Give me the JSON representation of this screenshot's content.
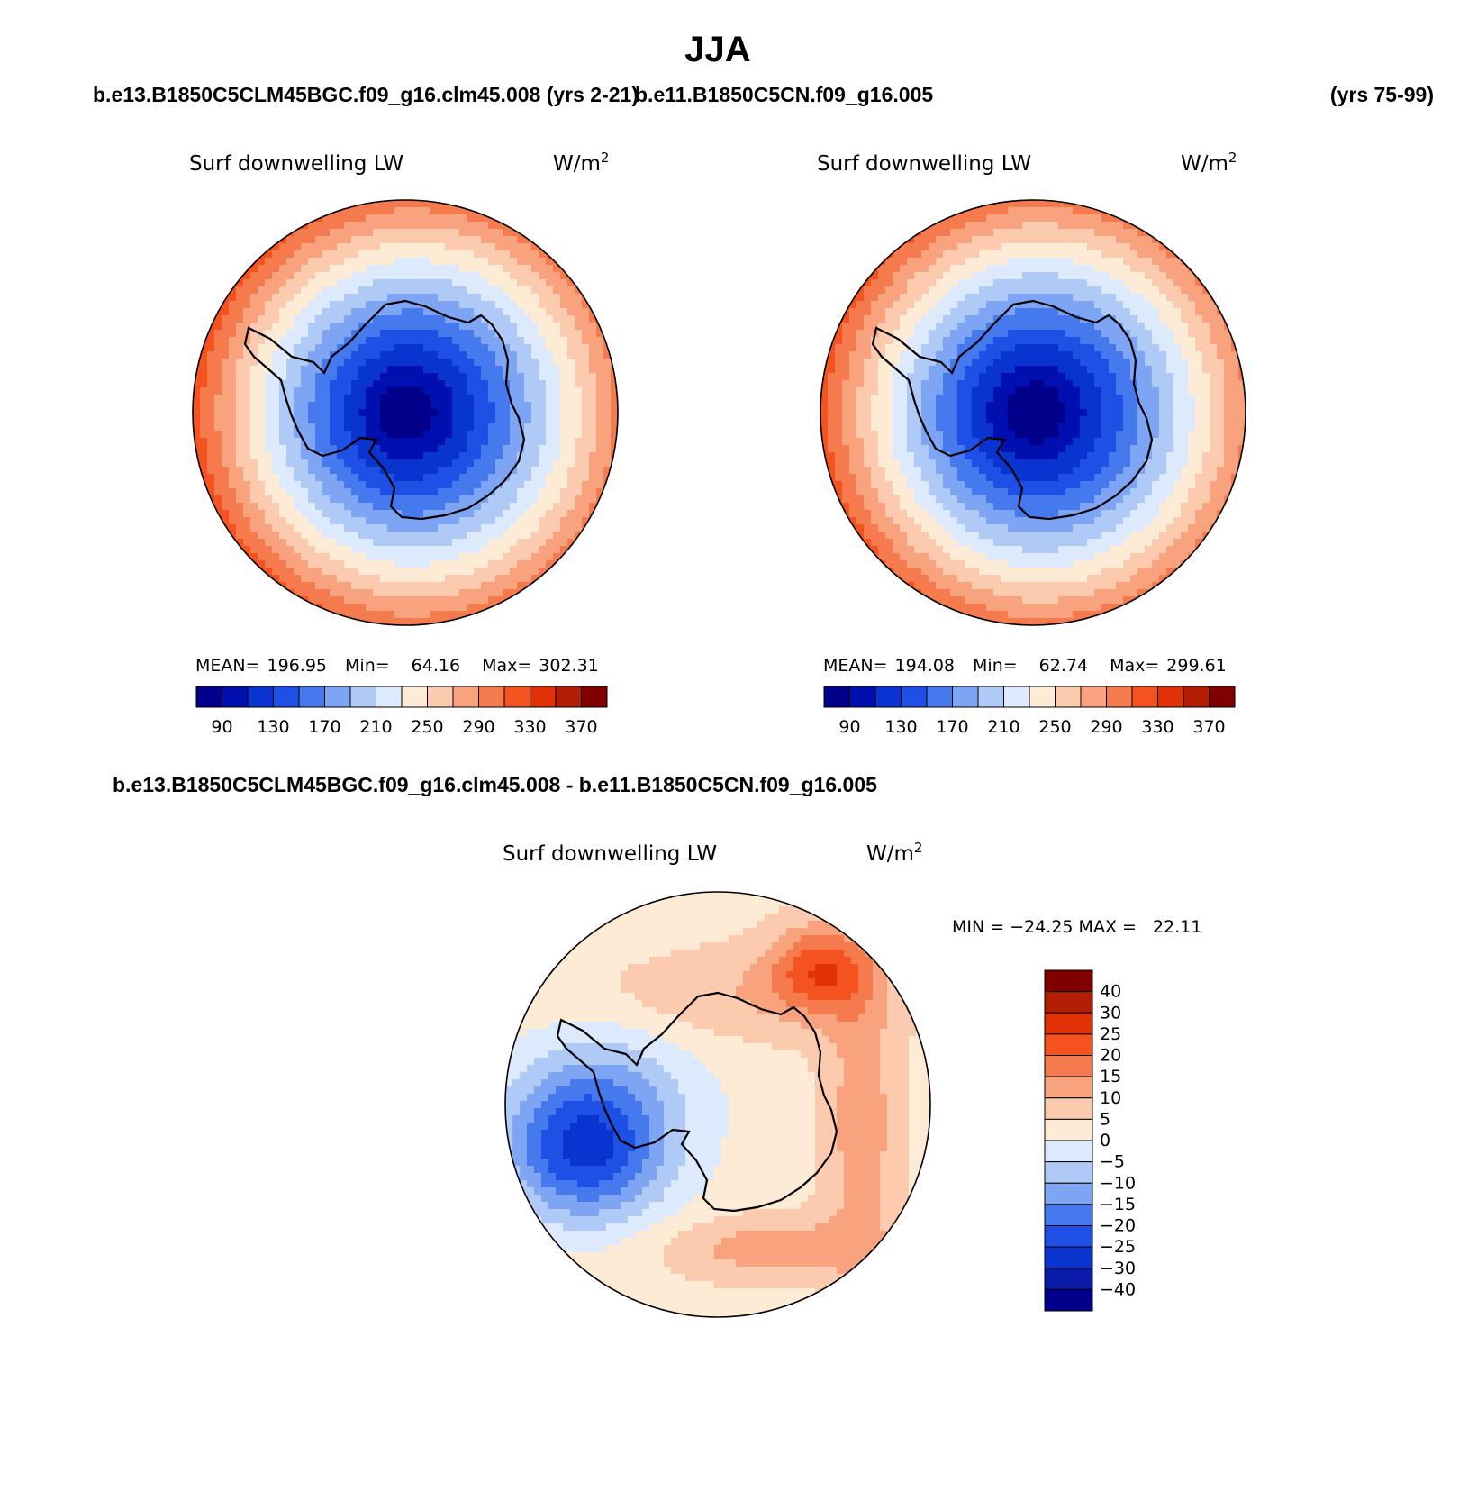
{
  "figure": {
    "title": "JJA",
    "case1": "b.e13.B1850C5CLM45BGC.f09_g16.clm45.008 (yrs 2-21)",
    "case2": "b.e11.B1850C5CN.f09_g16.005",
    "case2_years": "(yrs 75-99)",
    "diff_title": "b.e13.B1850C5CLM45BGC.f09_g16.clm45.008 - b.e11.B1850C5CN.f09_g16.005"
  },
  "colors": {
    "main_scale": [
      "#00008b",
      "#0010b0",
      "#0a34d0",
      "#1e50e6",
      "#4678ee",
      "#7ea4f4",
      "#b0caf8",
      "#dde9fc",
      "#fdebd6",
      "#fccaae",
      "#f9a27e",
      "#f57a4e",
      "#f4521e",
      "#e03206",
      "#b41e04",
      "#800000"
    ],
    "diff_scale": [
      "#00008b",
      "#0a1aa8",
      "#0a34d0",
      "#1e50e6",
      "#4678ee",
      "#7ea4f4",
      "#b0caf8",
      "#dde9fc",
      "#fdebd6",
      "#fccaae",
      "#f9a27e",
      "#f57a4e",
      "#f4521e",
      "#e03206",
      "#b41e04",
      "#800000"
    ],
    "coast": "#000000"
  },
  "chart_data": [
    {
      "type": "heatmap",
      "projection": "south-polar",
      "variable": "Surf downwelling LW",
      "units": "W/m",
      "units_exp": "2",
      "stats": {
        "mean_label": "MEAN=",
        "mean": "196.95",
        "min_label": "Min=",
        "min": "64.16",
        "max_label": "Max=",
        "max": "302.31"
      },
      "levels": [
        90,
        110,
        130,
        150,
        170,
        190,
        210,
        230,
        250,
        270,
        290,
        310,
        330,
        350,
        370
      ],
      "tick_labels": [
        "90",
        "130",
        "170",
        "210",
        "250",
        "290",
        "330",
        "370"
      ],
      "field": {
        "pole_value": 64.16,
        "edge_value": 302.31,
        "west_warm_bias": 20
      }
    },
    {
      "type": "heatmap",
      "projection": "south-polar",
      "variable": "Surf downwelling LW",
      "units": "W/m",
      "units_exp": "2",
      "stats": {
        "mean_label": "MEAN=",
        "mean": "194.08",
        "min_label": "Min=",
        "min": "62.74",
        "max_label": "Max=",
        "max": "299.61"
      },
      "levels": [
        90,
        110,
        130,
        150,
        170,
        190,
        210,
        230,
        250,
        270,
        290,
        310,
        330,
        350,
        370
      ],
      "tick_labels": [
        "90",
        "130",
        "170",
        "210",
        "250",
        "290",
        "330",
        "370"
      ],
      "field": {
        "pole_value": 62.74,
        "edge_value": 299.61,
        "west_warm_bias": 20
      }
    },
    {
      "type": "heatmap",
      "projection": "south-polar",
      "variable": "Surf downwelling LW",
      "units": "W/m",
      "units_exp": "2",
      "stats_text": "MIN = −24.25 MAX =   22.11",
      "levels": [
        -40,
        -30,
        -25,
        -20,
        -15,
        -10,
        -5,
        0,
        5,
        10,
        15,
        20,
        25,
        30,
        40
      ],
      "tick_labels": [
        "40",
        "30",
        "25",
        "20",
        "15",
        "10",
        "5",
        "0",
        "−5",
        "−10",
        "−15",
        "−20",
        "−25",
        "−30",
        "−40"
      ],
      "field": {
        "min": -24.25,
        "max": 22.11,
        "background": 3
      }
    }
  ]
}
